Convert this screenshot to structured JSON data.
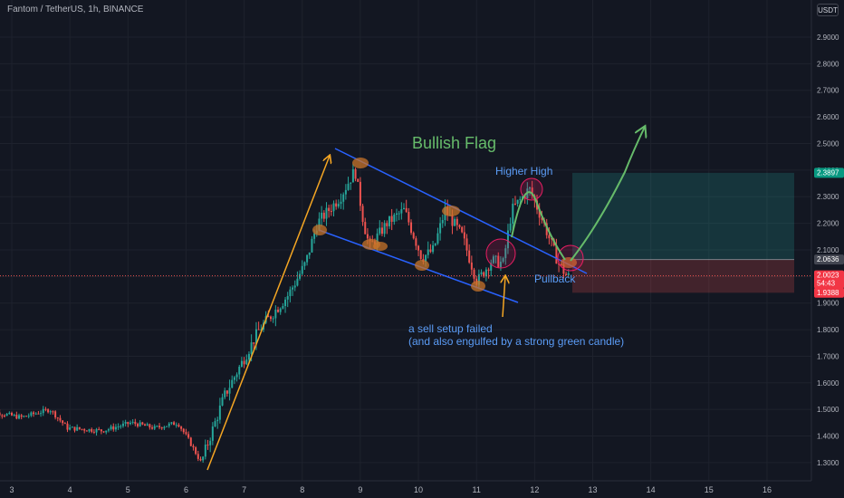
{
  "header": {
    "symbol_title": "Fantom / TetherUS, 1h, BINANCE",
    "currency": "USDT"
  },
  "colors": {
    "background": "#131722",
    "bull": "#26a69a",
    "bear": "#ef5350",
    "arrow": "#f5a623",
    "channel": "#2962ff",
    "projection": "#66bb6a",
    "highlight_fill": "#c8742a"
  },
  "annotations": {
    "bullish_flag": "Bullish Flag",
    "higher_high": "Higher High",
    "pullback": "Pullback",
    "sell_setup_line1": "a sell setup failed",
    "sell_setup_line2": "(and also engulfed by a strong green candle)"
  },
  "price_badges": {
    "target": "2.3897",
    "current_price": "2.0023",
    "countdown": "54:43",
    "entry": "2.0636",
    "stop": "1.9388"
  },
  "chart_data": {
    "type": "candlestick",
    "title": "Fantom / TetherUS, 1h, BINANCE",
    "y_tick_labels": [
      "2.9000",
      "2.8000",
      "2.7000",
      "2.6000",
      "2.5000",
      "2.4000",
      "2.3000",
      "2.2000",
      "2.1000",
      "2.0000",
      "1.9000",
      "1.8000",
      "1.7000",
      "1.6000",
      "1.5000",
      "1.4000",
      "1.3000"
    ],
    "x_tick_labels": [
      "3",
      "4",
      "5",
      "6",
      "7",
      "8",
      "9",
      "10",
      "11",
      "12",
      "13",
      "14",
      "15",
      "16"
    ],
    "ylim": [
      1.27,
      2.96
    ],
    "grid": true,
    "current_price": 2.0023,
    "long_position": {
      "target": 2.3897,
      "entry": 2.0636,
      "stop": 1.9388
    },
    "path_keypoints": [
      {
        "day": 2.5,
        "price": 1.5
      },
      {
        "day": 3.2,
        "price": 1.47
      },
      {
        "day": 3.7,
        "price": 1.5
      },
      {
        "day": 4.0,
        "price": 1.43
      },
      {
        "day": 4.6,
        "price": 1.42
      },
      {
        "day": 5.1,
        "price": 1.45
      },
      {
        "day": 5.5,
        "price": 1.43
      },
      {
        "day": 5.9,
        "price": 1.45
      },
      {
        "day": 6.1,
        "price": 1.38
      },
      {
        "day": 6.3,
        "price": 1.3
      },
      {
        "day": 6.7,
        "price": 1.55
      },
      {
        "day": 7.3,
        "price": 1.8
      },
      {
        "day": 7.8,
        "price": 1.93
      },
      {
        "day": 8.1,
        "price": 2.05
      },
      {
        "day": 8.3,
        "price": 2.2
      },
      {
        "day": 8.7,
        "price": 2.3
      },
      {
        "day": 8.95,
        "price": 2.4
      },
      {
        "day": 9.1,
        "price": 2.2
      },
      {
        "day": 9.2,
        "price": 2.11
      },
      {
        "day": 9.5,
        "price": 2.2
      },
      {
        "day": 9.8,
        "price": 2.25
      },
      {
        "day": 10.1,
        "price": 2.07
      },
      {
        "day": 10.3,
        "price": 2.1
      },
      {
        "day": 10.5,
        "price": 2.25
      },
      {
        "day": 10.8,
        "price": 2.15
      },
      {
        "day": 11.05,
        "price": 1.98
      },
      {
        "day": 11.3,
        "price": 2.06
      },
      {
        "day": 11.5,
        "price": 2.05
      },
      {
        "day": 11.65,
        "price": 2.25
      },
      {
        "day": 11.95,
        "price": 2.33
      },
      {
        "day": 12.2,
        "price": 2.2
      },
      {
        "day": 12.45,
        "price": 2.05
      },
      {
        "day": 12.6,
        "price": 2.0
      }
    ]
  }
}
